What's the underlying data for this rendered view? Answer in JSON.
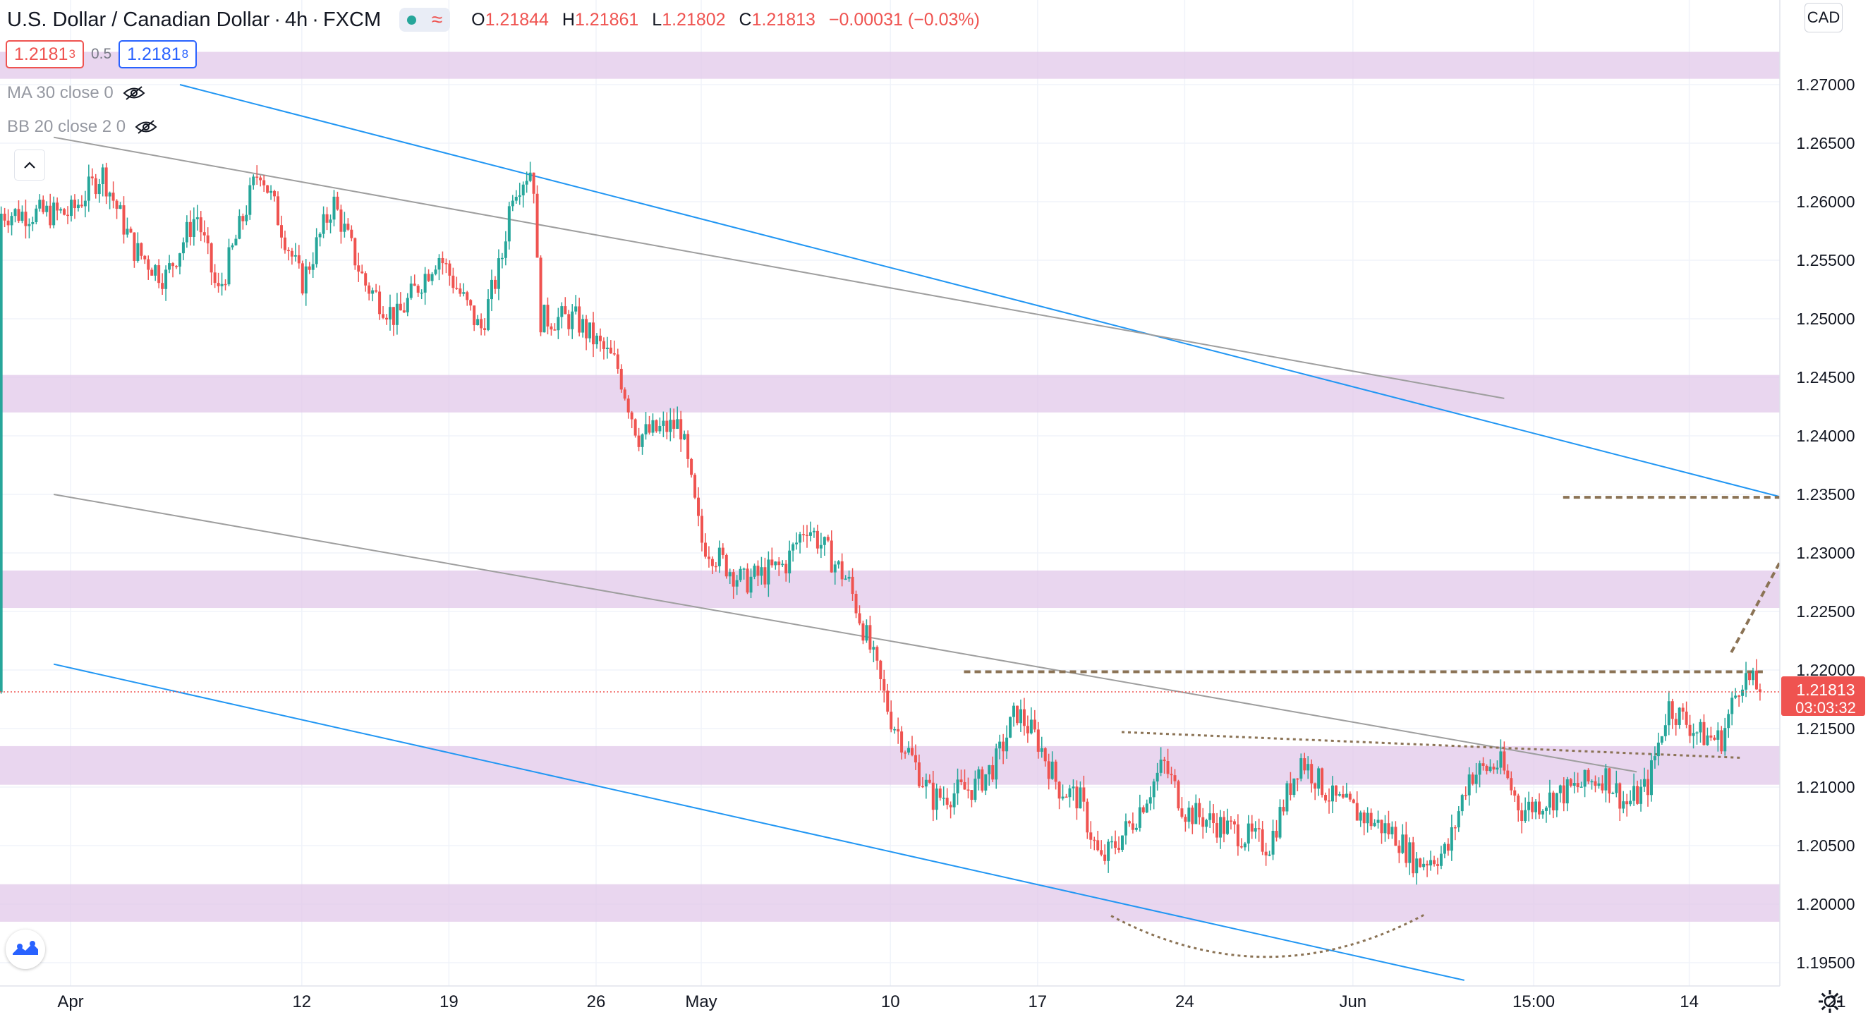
{
  "header": {
    "symbol": "U.S. Dollar / Canadian Dollar",
    "interval": "4h",
    "exchange": "FXCM",
    "ohlc": {
      "open_label": "O",
      "open": "1.21844",
      "high_label": "H",
      "high": "1.21861",
      "low_label": "L",
      "low": "1.21802",
      "close_label": "C",
      "close": "1.21813",
      "change": "−0.00031 (−0.03%)"
    }
  },
  "quote": {
    "sell_main": "1.2181",
    "sell_sup": "3",
    "spread": "0.5",
    "buy_main": "1.2181",
    "buy_sup": "8"
  },
  "indicators": [
    {
      "label": "MA 30 close 0",
      "icon": "eye-hidden-icon"
    },
    {
      "label": "BB 20 close 2 0",
      "icon": "eye-hidden-icon"
    }
  ],
  "currency_button": "CAD",
  "colors": {
    "up": "#26a69a",
    "down": "#ef5350",
    "zone": "#e1c8ea",
    "channel": "#2196f3",
    "trend": "#9e9e9e",
    "annotation": "#8b7355",
    "grid": "#f0f3fa"
  },
  "chart_data": {
    "type": "candlestick",
    "instrument": "USD/CAD",
    "timeframe": "4h",
    "x_ticks": [
      "Apr",
      "12",
      "19",
      "26",
      "May",
      "10",
      "17",
      "24",
      "Jun",
      "15:00",
      "14",
      "21"
    ],
    "y_ticks": [
      "1.19500",
      "1.20000",
      "1.20500",
      "1.21000",
      "1.21500",
      "1.22000",
      "1.22500",
      "1.23000",
      "1.23500",
      "1.24000",
      "1.24500",
      "1.25000",
      "1.25500",
      "1.26000",
      "1.26500",
      "1.27000"
    ],
    "ylim": [
      1.1925,
      1.2775
    ],
    "last_price": "1.21813",
    "countdown": "03:03:32",
    "last_value": 1.21813,
    "price_path": [
      {
        "day": 0,
        "price": 1.259
      },
      {
        "day": 1.5,
        "price": 1.2625
      },
      {
        "day": 3,
        "price": 1.256
      },
      {
        "day": 4.5,
        "price": 1.2535
      },
      {
        "day": 6,
        "price": 1.259
      },
      {
        "day": 7,
        "price": 1.252
      },
      {
        "day": 9,
        "price": 1.263
      },
      {
        "day": 11,
        "price": 1.253
      },
      {
        "day": 12.5,
        "price": 1.26
      },
      {
        "day": 14,
        "price": 1.253
      },
      {
        "day": 15.5,
        "price": 1.25
      },
      {
        "day": 17.5,
        "price": 1.2555
      },
      {
        "day": 19.5,
        "price": 1.249
      },
      {
        "day": 20.5,
        "price": 1.255
      },
      {
        "day": 21,
        "price": 1.261
      },
      {
        "day": 22,
        "price": 1.263
      },
      {
        "day": 22.3,
        "price": 1.25
      },
      {
        "day": 24,
        "price": 1.25
      },
      {
        "day": 26,
        "price": 1.246
      },
      {
        "day": 27,
        "price": 1.24
      },
      {
        "day": 29,
        "price": 1.241
      },
      {
        "day": 30,
        "price": 1.231
      },
      {
        "day": 32,
        "price": 1.2275
      },
      {
        "day": 34,
        "price": 1.229
      },
      {
        "day": 35,
        "price": 1.2325
      },
      {
        "day": 37,
        "price": 1.2275
      },
      {
        "day": 38,
        "price": 1.222
      },
      {
        "day": 39,
        "price": 1.216
      },
      {
        "day": 41,
        "price": 1.209
      },
      {
        "day": 43,
        "price": 1.21
      },
      {
        "day": 44,
        "price": 1.212
      },
      {
        "day": 45,
        "price": 1.2165
      },
      {
        "day": 46,
        "price": 1.214
      },
      {
        "day": 47,
        "price": 1.21
      },
      {
        "day": 48,
        "price": 1.209
      },
      {
        "day": 49,
        "price": 1.2035
      },
      {
        "day": 50.5,
        "price": 1.207
      },
      {
        "day": 52,
        "price": 1.212
      },
      {
        "day": 53,
        "price": 1.208
      },
      {
        "day": 55,
        "price": 1.2065
      },
      {
        "day": 57,
        "price": 1.205
      },
      {
        "day": 58.5,
        "price": 1.2125
      },
      {
        "day": 60,
        "price": 1.209
      },
      {
        "day": 61,
        "price": 1.208
      },
      {
        "day": 63,
        "price": 1.206
      },
      {
        "day": 64,
        "price": 1.2035
      },
      {
        "day": 65.5,
        "price": 1.2045
      },
      {
        "day": 66.5,
        "price": 1.211
      },
      {
        "day": 68,
        "price": 1.212
      },
      {
        "day": 69,
        "price": 1.208
      },
      {
        "day": 71,
        "price": 1.2095
      },
      {
        "day": 73,
        "price": 1.211
      },
      {
        "day": 74,
        "price": 1.2085
      },
      {
        "day": 75,
        "price": 1.21
      },
      {
        "day": 76,
        "price": 1.217
      },
      {
        "day": 77.5,
        "price": 1.2145
      },
      {
        "day": 78.5,
        "price": 1.214
      },
      {
        "day": 79.5,
        "price": 1.2195
      },
      {
        "day": 80.5,
        "price": 1.2181
      }
    ],
    "zones": [
      {
        "low": 1.2705,
        "high": 1.2728
      },
      {
        "low": 1.242,
        "high": 1.2452
      },
      {
        "low": 1.2253,
        "high": 1.2285
      },
      {
        "low": 1.2102,
        "high": 1.2135
      },
      {
        "low": 1.1985,
        "high": 1.2017
      }
    ],
    "lines": [
      {
        "kind": "channel-upper",
        "p1": {
          "day": 5.2,
          "price": 1.27
        },
        "p2": {
          "day": 87.8,
          "price": 1.2318
        }
      },
      {
        "kind": "channel-lower",
        "p1": {
          "day": -0.8,
          "price": 1.2205
        },
        "p2": {
          "day": 66.3,
          "price": 1.1935
        }
      },
      {
        "kind": "trendline-upper",
        "p1": {
          "day": -0.8,
          "price": 1.2655
        },
        "p2": {
          "day": 68.2,
          "price": 1.2432
        }
      },
      {
        "kind": "trendline-lower",
        "p1": {
          "day": -0.8,
          "price": 1.235
        },
        "p2": {
          "day": 74.5,
          "price": 1.2113
        }
      },
      {
        "kind": "resistance-dashed",
        "p1": {
          "day": 42.5,
          "price": 1.21985
        },
        "p2": {
          "day": 80.5,
          "price": 1.21985
        }
      },
      {
        "kind": "target-dashed",
        "p1": {
          "day": 71,
          "price": 1.23475
        },
        "p2": {
          "day": 84.5,
          "price": 1.23475
        }
      },
      {
        "kind": "neckline-dotted",
        "p1": {
          "day": 50,
          "price": 1.2147
        },
        "p2": {
          "day": 79.5,
          "price": 1.2125
        }
      }
    ],
    "arrow": {
      "from": {
        "day": 79,
        "price": 1.2215
      },
      "to": {
        "day": 82,
        "price": 1.2315
      }
    },
    "rounding_bottom": {
      "from": {
        "day": 49.5,
        "price": 1.199
      },
      "mid": {
        "day": 57,
        "price": 1.1955
      },
      "to": {
        "day": 64.5,
        "price": 1.1992
      }
    },
    "grid": true
  }
}
